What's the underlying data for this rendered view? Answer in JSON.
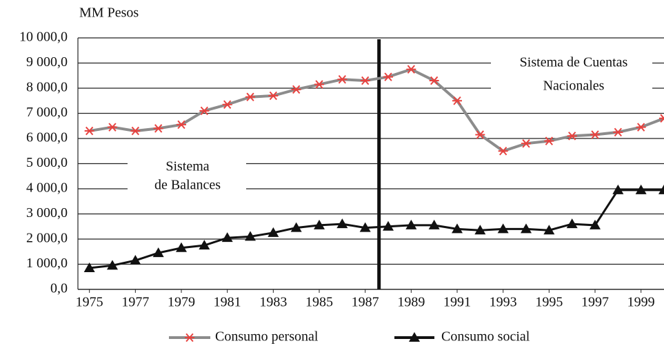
{
  "chart_data": {
    "type": "line",
    "y_axis_label": "MM Pesos",
    "x": [
      1975,
      1976,
      1977,
      1978,
      1979,
      1980,
      1981,
      1982,
      1983,
      1984,
      1985,
      1986,
      1987,
      1988,
      1989,
      1990,
      1991,
      1992,
      1993,
      1994,
      1995,
      1996,
      1997,
      1998,
      1999,
      2000
    ],
    "series": [
      {
        "name": "Consumo personal",
        "color": "#8c8c8c",
        "marker": "asterisk",
        "marker_color": "#e8423f",
        "values": [
          6300,
          6450,
          6300,
          6400,
          6550,
          7100,
          7350,
          7650,
          7700,
          7950,
          8150,
          8350,
          8300,
          8450,
          8750,
          8300,
          7500,
          6150,
          5500,
          5800,
          5900,
          6100,
          6150,
          6250,
          6450,
          6800
        ]
      },
      {
        "name": "Consumo social",
        "color": "#111111",
        "marker": "triangle",
        "marker_color": "#111111",
        "values": [
          850,
          950,
          1150,
          1450,
          1650,
          1750,
          2050,
          2100,
          2250,
          2450,
          2550,
          2600,
          2450,
          2500,
          2550,
          2550,
          2400,
          2350,
          2400,
          2400,
          2350,
          2600,
          2550,
          3950,
          3950,
          3950
        ]
      }
    ],
    "xlim": [
      1974.5,
      2000
    ],
    "xticks": [
      1975,
      1977,
      1979,
      1981,
      1983,
      1985,
      1987,
      1989,
      1991,
      1993,
      1995,
      1997,
      1999
    ],
    "ylim": [
      0,
      10000
    ],
    "yticks": [
      {
        "value": 0,
        "label": "0,0"
      },
      {
        "value": 1000,
        "label": "1 000,0"
      },
      {
        "value": 2000,
        "label": "2 000,0"
      },
      {
        "value": 3000,
        "label": "3 000,0"
      },
      {
        "value": 4000,
        "label": "4 000,0"
      },
      {
        "value": 5000,
        "label": "5 000,0"
      },
      {
        "value": 6000,
        "label": "6 000,0"
      },
      {
        "value": 7000,
        "label": "7 000,0"
      },
      {
        "value": 8000,
        "label": "8 000,0"
      },
      {
        "value": 9000,
        "label": "9 000,0"
      },
      {
        "value": 10000,
        "label": "10 000,0"
      }
    ],
    "grid": true,
    "vline": 1987.6,
    "annotations": [
      {
        "lines": [
          "Sistema",
          "de Balances"
        ]
      },
      {
        "lines": [
          "Sistema de Cuentas",
          "Nacionales"
        ]
      }
    ],
    "legend": "bottom"
  }
}
